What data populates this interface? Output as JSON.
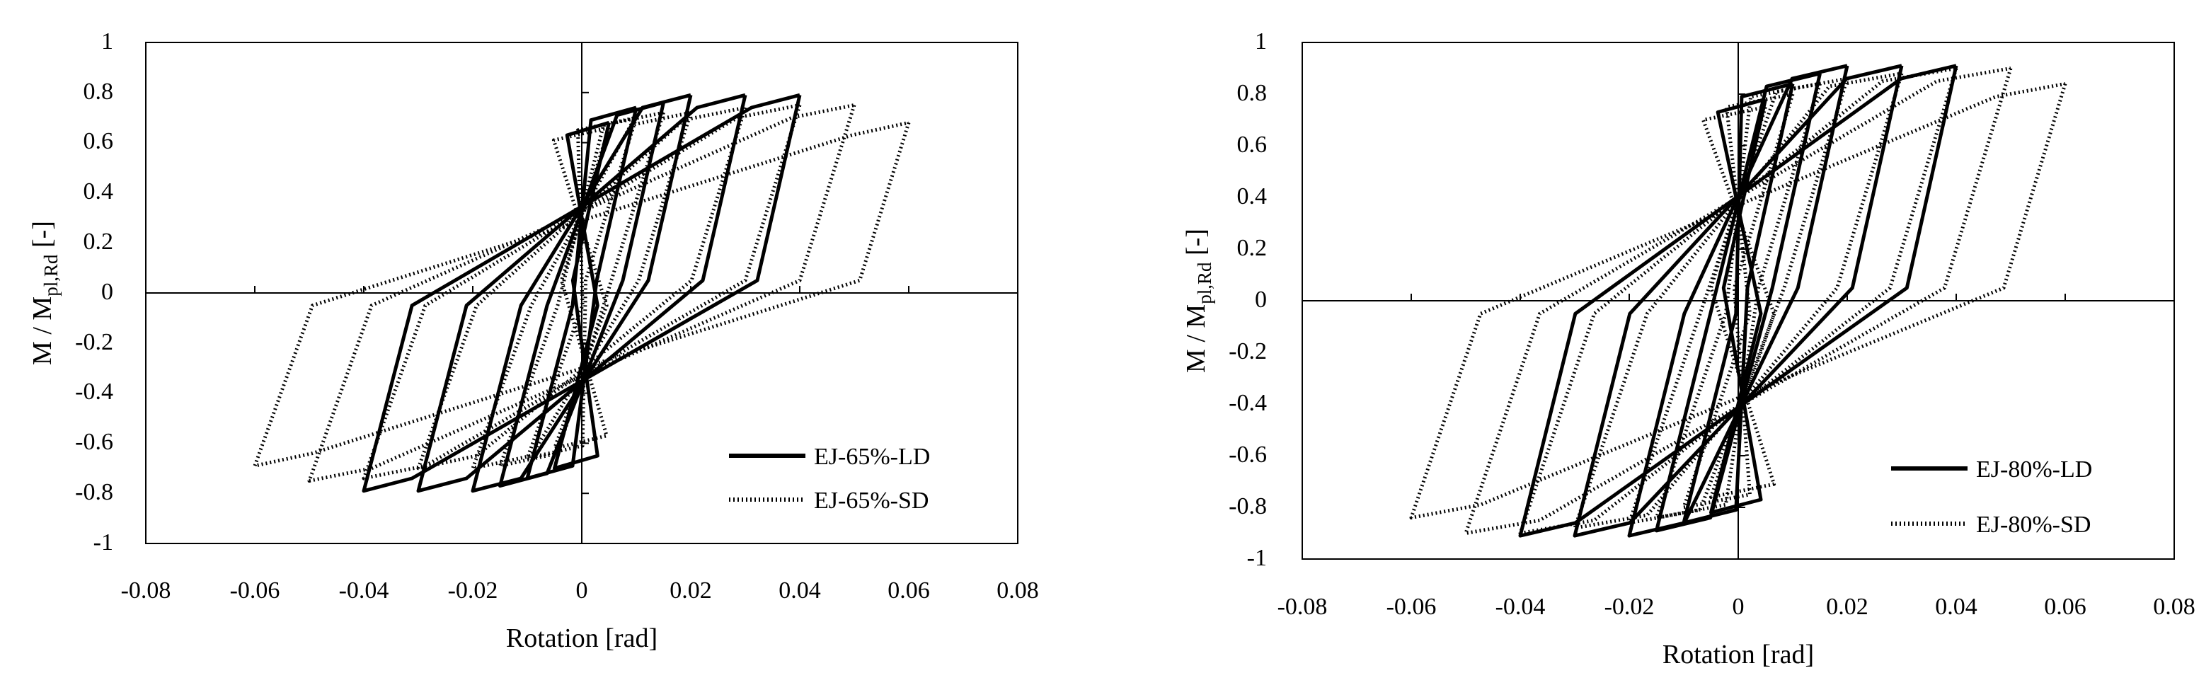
{
  "chart_data": [
    {
      "type": "line",
      "xlabel": "Rotation [rad]",
      "ylabel_main": "M / M",
      "ylabel_sub": "pl,Rd",
      "ylabel_tail": " [-]",
      "xlim": [
        -0.08,
        0.08
      ],
      "ylim": [
        -1,
        1
      ],
      "xticks": [
        "-0.08",
        "-0.06",
        "-0.04",
        "-0.02",
        "0",
        "0.02",
        "0.04",
        "0.06",
        "0.08"
      ],
      "yticks": [
        "-1",
        "-0.8",
        "-0.6",
        "-0.4",
        "-0.2",
        "0",
        "0.2",
        "0.4",
        "0.6",
        "0.8",
        "1"
      ],
      "legend_position": "bottom-right",
      "series": [
        {
          "name": "EJ-65%-LD",
          "style": "solid",
          "loops": [
            {
              "amp": 0.005,
              "top": 0.68,
              "bot": -0.7
            },
            {
              "amp": 0.01,
              "top": 0.74,
              "bot": -0.74
            },
            {
              "amp": 0.015,
              "top": 0.76,
              "bot": -0.77
            },
            {
              "amp": 0.02,
              "top": 0.79,
              "bot": -0.79
            },
            {
              "amp": 0.03,
              "top": 0.79,
              "bot": -0.79
            },
            {
              "amp": 0.04,
              "top": 0.79,
              "bot": -0.79
            }
          ]
        },
        {
          "name": "EJ-65%-SD",
          "style": "dotted",
          "loops": [
            {
              "amp": 0.005,
              "top": 0.66,
              "bot": -0.62
            },
            {
              "amp": 0.01,
              "top": 0.7,
              "bot": -0.66
            },
            {
              "amp": 0.015,
              "top": 0.72,
              "bot": -0.69
            },
            {
              "amp": 0.02,
              "top": 0.72,
              "bot": -0.7
            },
            {
              "amp": 0.03,
              "top": 0.74,
              "bot": -0.7
            },
            {
              "amp": 0.04,
              "top": 0.75,
              "bot": -0.74
            },
            {
              "amp": 0.05,
              "top": 0.75,
              "bot": -0.75
            },
            {
              "amp": 0.06,
              "top": 0.68,
              "bot": -0.69
            }
          ]
        }
      ]
    },
    {
      "type": "line",
      "xlabel": "Rotation [rad]",
      "ylabel_main": "M / M",
      "ylabel_sub": "pl,Rd",
      "ylabel_tail": " [-]",
      "xlim": [
        -0.08,
        0.08
      ],
      "ylim": [
        -1,
        1
      ],
      "xticks": [
        "-0.08",
        "-0.06",
        "-0.04",
        "-0.02",
        "0",
        "0.02",
        "0.04",
        "0.06",
        "0.08"
      ],
      "yticks": [
        "-1",
        "-0.8",
        "-0.6",
        "-0.4",
        "-0.2",
        "0",
        "0.2",
        "0.4",
        "0.6",
        "0.8",
        "1"
      ],
      "legend_position": "bottom-right",
      "series": [
        {
          "name": "EJ-80%-LD",
          "style": "solid",
          "loops": [
            {
              "amp": 0.005,
              "top": 0.78,
              "bot": -0.82
            },
            {
              "amp": 0.01,
              "top": 0.84,
              "bot": -0.86
            },
            {
              "amp": 0.015,
              "top": 0.88,
              "bot": -0.89
            },
            {
              "amp": 0.02,
              "top": 0.91,
              "bot": -0.91
            },
            {
              "amp": 0.03,
              "top": 0.91,
              "bot": -0.91
            },
            {
              "amp": 0.04,
              "top": 0.91,
              "bot": -0.91
            }
          ]
        },
        {
          "name": "EJ-80%-SD",
          "style": "dotted",
          "loops": [
            {
              "amp": 0.005,
              "top": 0.75,
              "bot": -0.76
            },
            {
              "amp": 0.01,
              "top": 0.8,
              "bot": -0.8
            },
            {
              "amp": 0.015,
              "top": 0.84,
              "bot": -0.84
            },
            {
              "amp": 0.02,
              "top": 0.86,
              "bot": -0.86
            },
            {
              "amp": 0.03,
              "top": 0.88,
              "bot": -0.88
            },
            {
              "amp": 0.04,
              "top": 0.9,
              "bot": -0.9
            },
            {
              "amp": 0.05,
              "top": 0.9,
              "bot": -0.9
            },
            {
              "amp": 0.06,
              "top": 0.84,
              "bot": -0.84
            }
          ]
        }
      ]
    }
  ]
}
